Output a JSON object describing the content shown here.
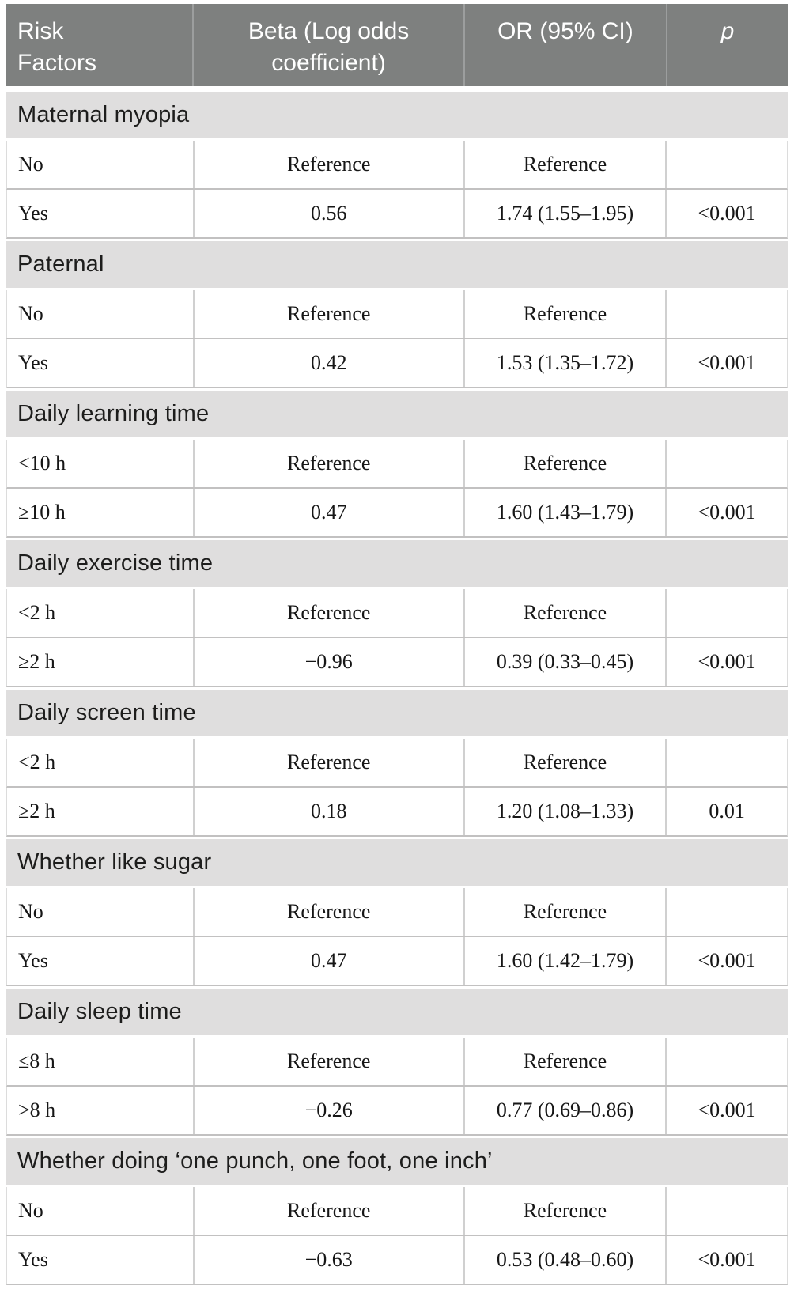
{
  "table": {
    "title": "Risk factors logistic regression table",
    "columns": [
      "Risk Factors",
      "Beta (Log odds coefficient)",
      "OR (95% CI)",
      "p"
    ],
    "colors": {
      "header_background": "#7e807f",
      "header_text": "#ffffff",
      "section_background": "#dfdede",
      "row_rule": "#c2c1c1"
    },
    "sections": [
      {
        "label": "Maternal myopia",
        "rows": [
          [
            "No",
            "Reference",
            "Reference",
            ""
          ],
          [
            "Yes",
            "0.56",
            "1.74 (1.55–1.95)",
            "<0.001"
          ]
        ]
      },
      {
        "label": "Paternal",
        "rows": [
          [
            "No",
            "Reference",
            "Reference",
            ""
          ],
          [
            "Yes",
            "0.42",
            "1.53 (1.35–1.72)",
            "<0.001"
          ]
        ]
      },
      {
        "label": "Daily learning time",
        "rows": [
          [
            "<10 h",
            "Reference",
            "Reference",
            ""
          ],
          [
            "≥10 h",
            "0.47",
            "1.60 (1.43–1.79)",
            "<0.001"
          ]
        ]
      },
      {
        "label": "Daily exercise time",
        "rows": [
          [
            "<2 h",
            "Reference",
            "Reference",
            ""
          ],
          [
            "≥2 h",
            "−0.96",
            "0.39 (0.33–0.45)",
            "<0.001"
          ]
        ]
      },
      {
        "label": "Daily screen time",
        "rows": [
          [
            "<2 h",
            "Reference",
            "Reference",
            ""
          ],
          [
            "≥2 h",
            "0.18",
            "1.20 (1.08–1.33)",
            "0.01"
          ]
        ]
      },
      {
        "label": "Whether like sugar",
        "rows": [
          [
            "No",
            "Reference",
            "Reference",
            ""
          ],
          [
            "Yes",
            "0.47",
            "1.60 (1.42–1.79)",
            "<0.001"
          ]
        ]
      },
      {
        "label": "Daily sleep time",
        "rows": [
          [
            "≤8 h",
            "Reference",
            "Reference",
            ""
          ],
          [
            ">8 h",
            "−0.26",
            "0.77 (0.69–0.86)",
            "<0.001"
          ]
        ]
      },
      {
        "label": "Whether doing ‘one punch, one foot, one inch’",
        "rows": [
          [
            "No",
            "Reference",
            "Reference",
            ""
          ],
          [
            "Yes",
            "−0.63",
            "0.53 (0.48–0.60)",
            "<0.001"
          ]
        ]
      }
    ]
  }
}
